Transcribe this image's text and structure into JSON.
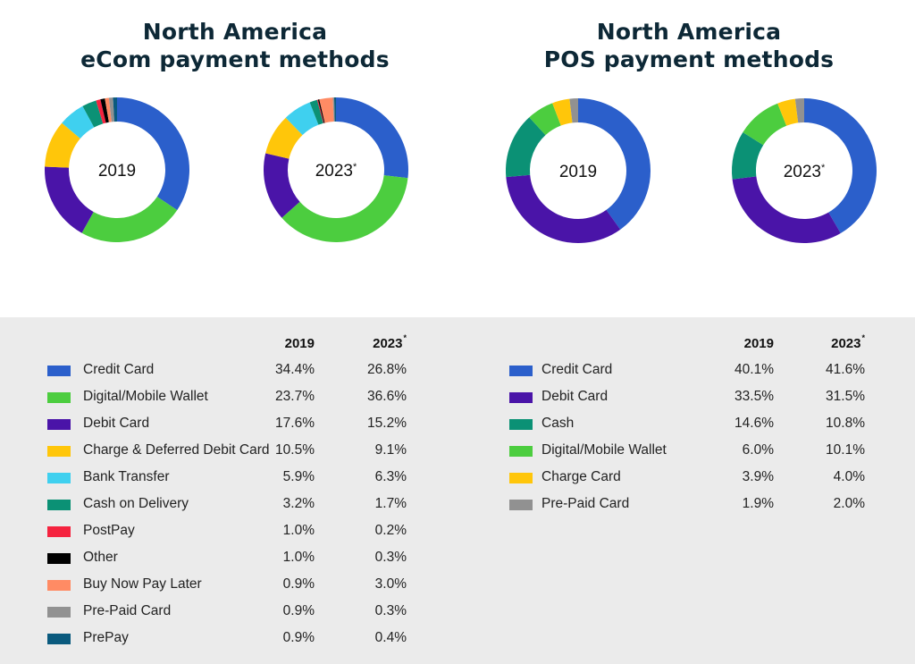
{
  "colors": {
    "Credit Card": "#2b5fcb",
    "Digital/Mobile Wallet": "#4ccd3f",
    "Debit Card": "#4a14a8",
    "Charge & Deferred Debit Card": "#ffc60a",
    "Charge Card": "#ffc60a",
    "Bank Transfer": "#3fd0ef",
    "Cash on Delivery": "#0b9175",
    "Cash": "#0b9175",
    "PostPay": "#f5233f",
    "Other": "#000000",
    "Buy Now Pay Later": "#ff8b64",
    "Pre-Paid Card": "#919191",
    "PrePay": "#0a5a7e"
  },
  "chart_data": [
    {
      "type": "pie",
      "variant": "donut",
      "title": "North America eCom payment methods",
      "title_lines": [
        "North America",
        "eCom payment methods"
      ],
      "column_headers": [
        "2019",
        "2023"
      ],
      "header_marks": [
        "",
        "*"
      ],
      "categories": [
        "Credit Card",
        "Digital/Mobile Wallet",
        "Debit Card",
        "Charge & Deferred Debit Card",
        "Bank Transfer",
        "Cash on Delivery",
        "PostPay",
        "Other",
        "Buy Now Pay Later",
        "Pre-Paid Card",
        "PrePay"
      ],
      "series": [
        {
          "name": "2019",
          "center_label": "2019",
          "values": [
            34.4,
            23.7,
            17.6,
            10.5,
            5.9,
            3.2,
            1.0,
            1.0,
            0.9,
            0.9,
            0.9
          ],
          "labels": [
            "34.4%",
            "23.7%",
            "17.6%",
            "10.5%",
            "5.9%",
            "3.2%",
            "1.0%",
            "1.0%",
            "0.9%",
            "0.9%",
            "0.9%"
          ]
        },
        {
          "name": "2023*",
          "center_label": "2023",
          "values": [
            26.8,
            36.6,
            15.2,
            9.1,
            6.3,
            1.7,
            0.2,
            0.3,
            3.0,
            0.3,
            0.4
          ],
          "labels": [
            "26.8%",
            "36.6%",
            "15.2%",
            "9.1%",
            "6.3%",
            "1.7%",
            "0.2%",
            "0.3%",
            "3.0%",
            "0.3%",
            "0.4%"
          ]
        }
      ]
    },
    {
      "type": "pie",
      "variant": "donut",
      "title": "North America POS payment methods",
      "title_lines": [
        "North America",
        "POS payment methods"
      ],
      "column_headers": [
        "2019",
        "2023"
      ],
      "header_marks": [
        "",
        "*"
      ],
      "categories": [
        "Credit Card",
        "Debit Card",
        "Cash",
        "Digital/Mobile Wallet",
        "Charge Card",
        "Pre-Paid Card"
      ],
      "series": [
        {
          "name": "2019",
          "center_label": "2019",
          "values": [
            40.1,
            33.5,
            14.6,
            6.0,
            3.9,
            1.9
          ],
          "labels": [
            "40.1%",
            "33.5%",
            "14.6%",
            "6.0%",
            "3.9%",
            "1.9%"
          ]
        },
        {
          "name": "2023*",
          "center_label": "2023",
          "values": [
            41.6,
            31.5,
            10.8,
            10.1,
            4.0,
            2.0
          ],
          "labels": [
            "41.6%",
            "31.5%",
            "10.8%",
            "10.1%",
            "4.0%",
            "2.0%"
          ]
        }
      ]
    }
  ]
}
